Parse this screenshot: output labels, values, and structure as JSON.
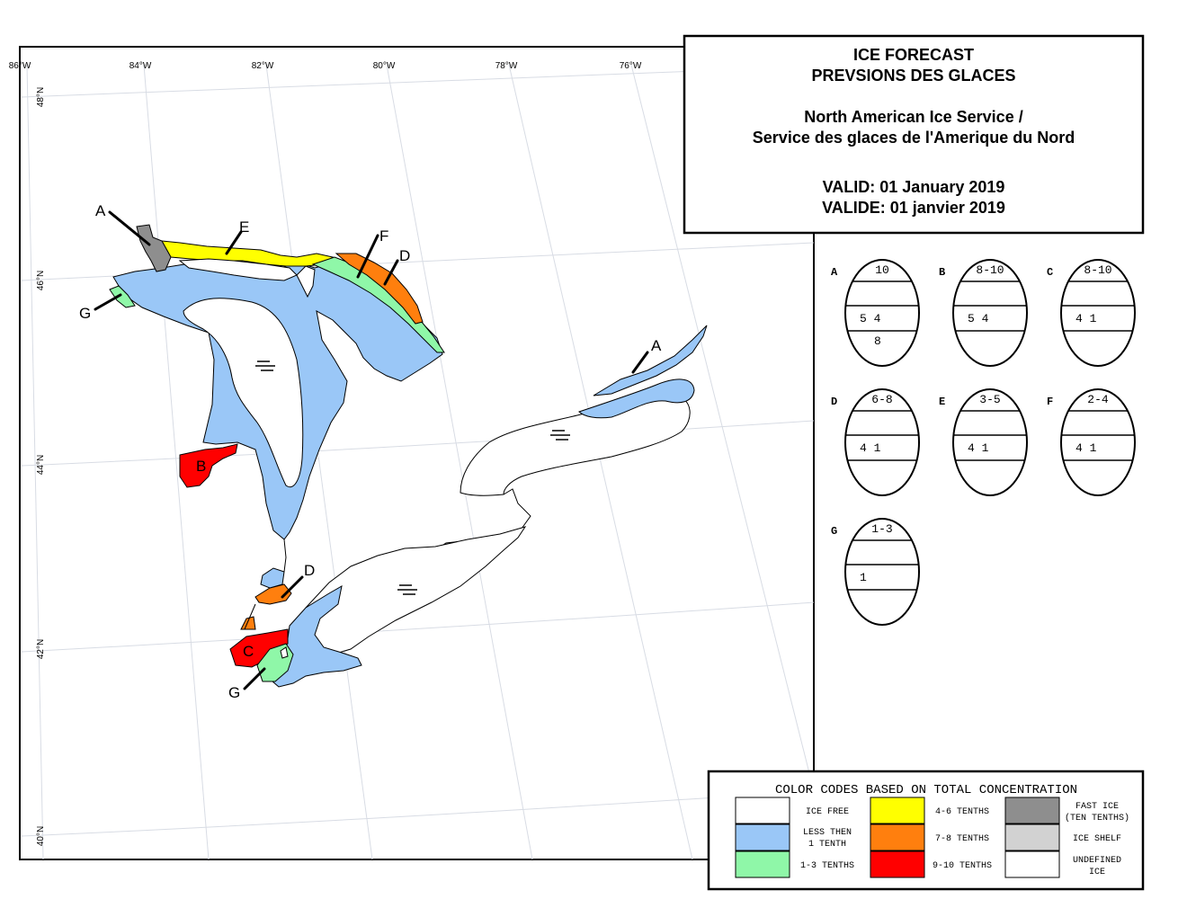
{
  "title": {
    "line1": "ICE FORECAST",
    "line2": "PREVSIONS DES GLACES",
    "line3": "North American Ice Service /",
    "line4": "Service des glaces de l'Amerique du Nord",
    "line5": "VALID: 01 January 2019",
    "line6": "VALIDE: 01 janvier 2019"
  },
  "graticule": {
    "longitudes": [
      "86°W",
      "84°W",
      "82°W",
      "80°W",
      "78°W",
      "76°W"
    ],
    "latitudes": [
      "48°N",
      "46°N",
      "44°N",
      "42°N",
      "40°N"
    ]
  },
  "colors": {
    "ice_free": "#ffffff",
    "less_than_1": "#9ac7f7",
    "tenths_1_3": "#8ff7a8",
    "tenths_4_6": "#ffff00",
    "tenths_7_8": "#ff7f0e",
    "tenths_9_10": "#ff0000",
    "fast_ice": "#8e8e8e",
    "ice_shelf": "#d2d2d2",
    "undefined": "#ffffff"
  },
  "map_labels": {
    "A_north": "A",
    "E": "E",
    "F": "F",
    "D_north": "D",
    "G_north": "G",
    "B": "B",
    "A_east": "A",
    "D_south": "D",
    "C": "C",
    "G_south": "G"
  },
  "egg_codes": [
    {
      "id": "A",
      "top": "10",
      "row1": "5 4",
      "row2": "8"
    },
    {
      "id": "B",
      "top": "8-10",
      "row1": "5 4",
      "row2": ""
    },
    {
      "id": "C",
      "top": "8-10",
      "row1": "4 1",
      "row2": ""
    },
    {
      "id": "D",
      "top": "6-8",
      "row1": "4 1",
      "row2": ""
    },
    {
      "id": "E",
      "top": "3-5",
      "row1": "4 1",
      "row2": ""
    },
    {
      "id": "F",
      "top": "2-4",
      "row1": "4 1",
      "row2": ""
    },
    {
      "id": "G",
      "top": "1-3",
      "row1": "1",
      "row2": ""
    }
  ],
  "legend": {
    "title": "COLOR CODES BASED ON TOTAL CONCENTRATION",
    "ice_free": "ICE FREE",
    "less_then_a": "LESS THEN",
    "less_then_b": "1 TENTH",
    "t13": "1-3 TENTHS",
    "t46": "4-6 TENTHS",
    "t78": "7-8 TENTHS",
    "t910": "9-10 TENTHS",
    "fast_a": "FAST ICE",
    "fast_b": "(TEN TENTHS)",
    "shelf": "ICE SHELF",
    "undef_a": "UNDEFINED",
    "undef_b": "ICE"
  }
}
